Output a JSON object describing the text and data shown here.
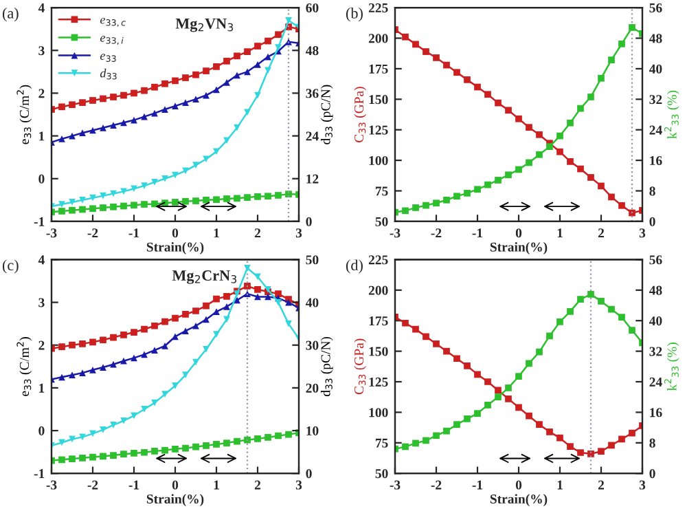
{
  "chart_data": [
    {
      "type": "line",
      "annotations": [
        "(a)",
        "Mg$_{2}$VN$_{3}$"
      ],
      "xlabel": "Strain(%)",
      "ylabel": "e$_{33}$ (C/m$^{2}$)",
      "y2label": "d$_{33}$ (pC/N)",
      "x": [
        -3,
        -2.75,
        -2.5,
        -2.25,
        -2,
        -1.75,
        -1.5,
        -1.25,
        -1,
        -0.75,
        -0.5,
        -0.25,
        0,
        0.25,
        0.5,
        0.75,
        1,
        1.25,
        1.5,
        1.75,
        2,
        2.25,
        2.5,
        2.75,
        3
      ],
      "xlim": [
        -3,
        3
      ],
      "xticks": [
        -3,
        -2,
        -1,
        0,
        1,
        2,
        3
      ],
      "ylim": [
        -1,
        4
      ],
      "yticks": [
        -1,
        0,
        1,
        2,
        3,
        4
      ],
      "y2lim": [
        0,
        60
      ],
      "y2ticks": [
        0,
        12,
        24,
        36,
        48,
        60
      ],
      "legend": "top left",
      "grid": false,
      "ref_lines": [
        {
          "axis": "x",
          "value": 2.75,
          "line_style": "dotted",
          "color": "#9999aa"
        }
      ],
      "series": [
        {
          "name": "e$_{33,c}$",
          "color": "#cc1f1f",
          "marker": "square",
          "values": [
            1.62,
            1.68,
            1.73,
            1.78,
            1.83,
            1.87,
            1.91,
            1.95,
            2.0,
            2.06,
            2.14,
            2.22,
            2.29,
            2.36,
            2.43,
            2.52,
            2.62,
            2.75,
            2.87,
            2.97,
            3.1,
            3.22,
            3.37,
            3.55,
            3.5
          ]
        },
        {
          "name": "e$_{33,i}$",
          "color": "#2ebf2e",
          "marker": "square",
          "values": [
            -0.78,
            -0.76,
            -0.74,
            -0.72,
            -0.7,
            -0.68,
            -0.66,
            -0.64,
            -0.62,
            -0.6,
            -0.59,
            -0.57,
            -0.55,
            -0.53,
            -0.52,
            -0.5,
            -0.49,
            -0.47,
            -0.46,
            -0.44,
            -0.42,
            -0.41,
            -0.39,
            -0.36,
            -0.37
          ]
        },
        {
          "name": "e$_{33}$",
          "color": "#1a1aa8",
          "marker": "triangle",
          "values": [
            0.85,
            0.93,
            1.0,
            1.07,
            1.13,
            1.19,
            1.25,
            1.31,
            1.37,
            1.45,
            1.53,
            1.62,
            1.7,
            1.78,
            1.86,
            1.95,
            2.08,
            2.25,
            2.42,
            2.5,
            2.67,
            2.85,
            2.98,
            3.2,
            3.17
          ]
        },
        {
          "name": "d$_{33}$",
          "color": "#33d6dd",
          "marker": "triangle_down",
          "axis": "y2",
          "values": [
            4.2,
            4.8,
            5.4,
            6.0,
            6.6,
            7.2,
            7.8,
            8.4,
            9.2,
            10.0,
            11.0,
            12.0,
            13.0,
            14.2,
            15.8,
            17.5,
            19.6,
            22.7,
            26.3,
            30.6,
            35.4,
            42.4,
            48.8,
            56.4,
            54.5
          ]
        }
      ]
    },
    {
      "type": "line",
      "annotations": [
        "(b)"
      ],
      "xlabel": "Strain(%)",
      "ylabel": "C$_{33}$ (GPa)",
      "y2label": "k$^{2}$$_{33}$ (%)",
      "x": [
        -3,
        -2.75,
        -2.5,
        -2.25,
        -2,
        -1.75,
        -1.5,
        -1.25,
        -1,
        -0.75,
        -0.5,
        -0.25,
        0,
        0.25,
        0.5,
        0.75,
        1,
        1.25,
        1.5,
        1.75,
        2,
        2.25,
        2.5,
        2.75,
        3
      ],
      "xlim": [
        -3,
        3
      ],
      "xticks": [
        -3,
        -2,
        -1,
        0,
        1,
        2,
        3
      ],
      "ylim": [
        50,
        225
      ],
      "yticks": [
        50,
        75,
        100,
        125,
        150,
        175,
        200,
        225
      ],
      "y2lim": [
        0,
        56
      ],
      "y2ticks": [
        0,
        8,
        16,
        24,
        32,
        40,
        48,
        56
      ],
      "grid": false,
      "ref_lines": [
        {
          "axis": "x",
          "value": 2.75,
          "line_style": "dotted",
          "color": "#9999aa"
        }
      ],
      "series": [
        {
          "color": "#cc1f1f",
          "marker": "square",
          "values": [
            207,
            201,
            195,
            189,
            184,
            178,
            172,
            166,
            160,
            154,
            147,
            141,
            134,
            127,
            121,
            114,
            107,
            99,
            93,
            86,
            79,
            70,
            63,
            57,
            59
          ]
        },
        {
          "color": "#2ebf2e",
          "marker": "square",
          "axis": "y2",
          "values": [
            2.4,
            2.8,
            3.6,
            4.2,
            4.8,
            5.6,
            6.6,
            7.4,
            8.4,
            9.6,
            10.8,
            12.2,
            13.6,
            15.4,
            17.5,
            19.6,
            22.4,
            25.8,
            29.6,
            32.6,
            37.5,
            42.3,
            46.5,
            50.8,
            49.2
          ]
        }
      ]
    },
    {
      "type": "line",
      "annotations": [
        "(c)",
        "Mg$_{2}$CrN$_{3}$"
      ],
      "xlabel": "Strain(%)",
      "ylabel": "e$_{33}$ (C/m$^{2}$)",
      "y2label": "d$_{33}$ (pC/N)",
      "x": [
        -3,
        -2.75,
        -2.5,
        -2.25,
        -2,
        -1.75,
        -1.5,
        -1.25,
        -1,
        -0.75,
        -0.5,
        -0.25,
        0,
        0.25,
        0.5,
        0.75,
        1,
        1.25,
        1.5,
        1.75,
        2,
        2.25,
        2.5,
        2.75,
        3
      ],
      "xlim": [
        -3,
        3
      ],
      "xticks": [
        -3,
        -2,
        -1,
        0,
        1,
        2,
        3
      ],
      "ylim": [
        -1,
        4
      ],
      "yticks": [
        -1,
        0,
        1,
        2,
        3,
        4
      ],
      "y2lim": [
        0,
        50
      ],
      "y2ticks": [
        0,
        10,
        20,
        30,
        40,
        50
      ],
      "grid": false,
      "ref_lines": [
        {
          "axis": "x",
          "value": 1.75,
          "line_style": "dotted",
          "color": "#9999aa"
        }
      ],
      "series": [
        {
          "color": "#cc1f1f",
          "marker": "square",
          "values": [
            1.92,
            1.96,
            2.0,
            2.03,
            2.07,
            2.12,
            2.18,
            2.24,
            2.3,
            2.37,
            2.45,
            2.55,
            2.63,
            2.72,
            2.8,
            2.92,
            3.08,
            3.14,
            3.26,
            3.38,
            3.3,
            3.25,
            3.2,
            3.07,
            2.95
          ]
        },
        {
          "color": "#2ebf2e",
          "marker": "square",
          "values": [
            -0.7,
            -0.68,
            -0.66,
            -0.64,
            -0.62,
            -0.6,
            -0.58,
            -0.55,
            -0.53,
            -0.51,
            -0.48,
            -0.46,
            -0.43,
            -0.41,
            -0.38,
            -0.35,
            -0.32,
            -0.29,
            -0.25,
            -0.22,
            -0.19,
            -0.16,
            -0.12,
            -0.09,
            -0.05
          ]
        },
        {
          "color": "#1a1aa8",
          "marker": "triangle",
          "values": [
            1.2,
            1.25,
            1.3,
            1.35,
            1.42,
            1.48,
            1.55,
            1.63,
            1.7,
            1.78,
            1.88,
            1.98,
            2.2,
            2.33,
            2.45,
            2.6,
            2.78,
            2.9,
            3.05,
            3.2,
            3.13,
            3.13,
            3.1,
            3.0,
            2.87
          ]
        },
        {
          "color": "#33d6dd",
          "marker": "triangle_down",
          "axis": "y2",
          "values": [
            6.5,
            7.2,
            8.0,
            8.5,
            9.3,
            10.2,
            11.3,
            12.3,
            13.5,
            15.0,
            16.5,
            18.5,
            20.5,
            23,
            26,
            29,
            32.5,
            36,
            42,
            48,
            46,
            43,
            40,
            35,
            31.5
          ]
        }
      ]
    },
    {
      "type": "line",
      "annotations": [
        "(d)"
      ],
      "xlabel": "Strain(%)",
      "ylabel": "C$_{33}$ (GPa)",
      "y2label": "k$^{2}$$_{33}$ (%)",
      "x": [
        -3,
        -2.75,
        -2.5,
        -2.25,
        -2,
        -1.75,
        -1.5,
        -1.25,
        -1,
        -0.75,
        -0.5,
        -0.25,
        0,
        0.25,
        0.5,
        0.75,
        1,
        1.25,
        1.5,
        1.75,
        2,
        2.25,
        2.5,
        2.75,
        3
      ],
      "xlim": [
        -3,
        3
      ],
      "xticks": [
        -3,
        -2,
        -1,
        0,
        1,
        2,
        3
      ],
      "ylim": [
        50,
        225
      ],
      "yticks": [
        50,
        75,
        100,
        125,
        150,
        175,
        200,
        225
      ],
      "y2lim": [
        0,
        56
      ],
      "y2ticks": [
        0,
        8,
        16,
        24,
        32,
        40,
        48,
        56
      ],
      "grid": false,
      "ref_lines": [
        {
          "axis": "x",
          "value": 1.75,
          "line_style": "dotted",
          "color": "#9999aa"
        }
      ],
      "series": [
        {
          "color": "#cc1f1f",
          "marker": "square",
          "values": [
            178,
            173,
            168,
            162,
            156,
            150,
            144,
            138,
            131,
            125,
            118,
            111,
            104,
            97,
            90,
            84,
            79,
            72,
            67,
            66,
            68,
            73,
            78,
            83,
            89
          ]
        },
        {
          "color": "#2ebf2e",
          "marker": "square",
          "axis": "y2",
          "values": [
            6.4,
            7.0,
            7.9,
            8.6,
            9.9,
            11.1,
            12.8,
            14.3,
            15.7,
            17.9,
            20.0,
            22.4,
            25.4,
            28.8,
            31.8,
            36.0,
            39.7,
            42.4,
            45.6,
            46.9,
            45.1,
            43.0,
            40.9,
            37.5,
            34.2
          ]
        }
      ]
    }
  ]
}
